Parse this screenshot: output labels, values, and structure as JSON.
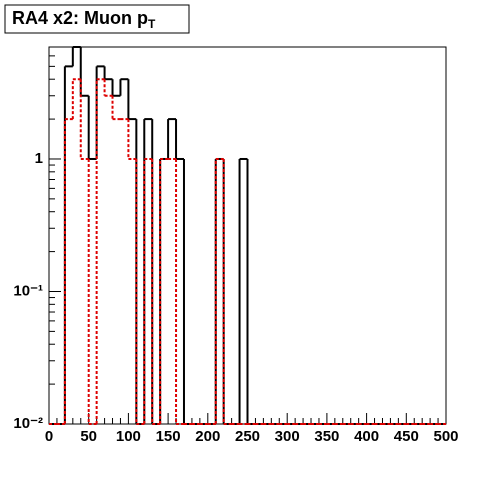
{
  "chart_data": {
    "type": "histogram",
    "title": "RA4 x2: Muon p",
    "title_sub": "T",
    "bins": [
      0,
      10,
      20,
      30,
      40,
      50,
      60,
      70,
      80,
      90,
      100,
      110,
      120,
      130,
      140,
      150,
      160,
      170,
      180,
      190,
      200,
      210,
      220,
      230,
      240,
      250,
      260,
      270,
      280,
      290,
      300,
      310,
      320,
      330,
      340,
      350,
      360,
      370,
      380,
      390,
      400,
      410,
      420,
      430,
      440,
      450,
      460,
      470,
      480,
      490,
      500
    ],
    "series": [
      {
        "color": "#000000",
        "style": "solid",
        "values": [
          0,
          0,
          5,
          7,
          3,
          1,
          5,
          4,
          3,
          4,
          2,
          0,
          2,
          0,
          1,
          2,
          1,
          0,
          0,
          0,
          0,
          1,
          0,
          0,
          1,
          0,
          0,
          0,
          0,
          0,
          0,
          0,
          0,
          0,
          0,
          0,
          0,
          0,
          0,
          0,
          0,
          0,
          0,
          0,
          0,
          0,
          0,
          0,
          0,
          0
        ]
      },
      {
        "color": "#dd0000",
        "style": "dotted",
        "values": [
          0,
          0,
          2,
          4,
          1,
          0,
          4,
          3,
          2,
          2,
          1,
          0,
          1,
          0,
          1,
          1,
          0,
          0,
          0,
          0,
          0,
          1,
          0,
          0,
          0,
          0,
          0,
          0,
          0,
          0,
          0,
          0,
          0,
          0,
          0,
          0,
          0,
          0,
          0,
          0,
          0,
          0,
          0,
          0,
          0,
          0,
          0,
          0,
          0,
          0
        ]
      }
    ],
    "xlim": [
      0,
      500
    ],
    "xticks": [
      0,
      50,
      100,
      150,
      200,
      250,
      300,
      350,
      400,
      450,
      500
    ],
    "ylim": [
      0.01,
      7
    ],
    "log_y": true,
    "yticks": [
      {
        "value": 0.01,
        "label": "10⁻²"
      },
      {
        "value": 0.1,
        "label": "10⁻¹"
      },
      1
    ]
  }
}
